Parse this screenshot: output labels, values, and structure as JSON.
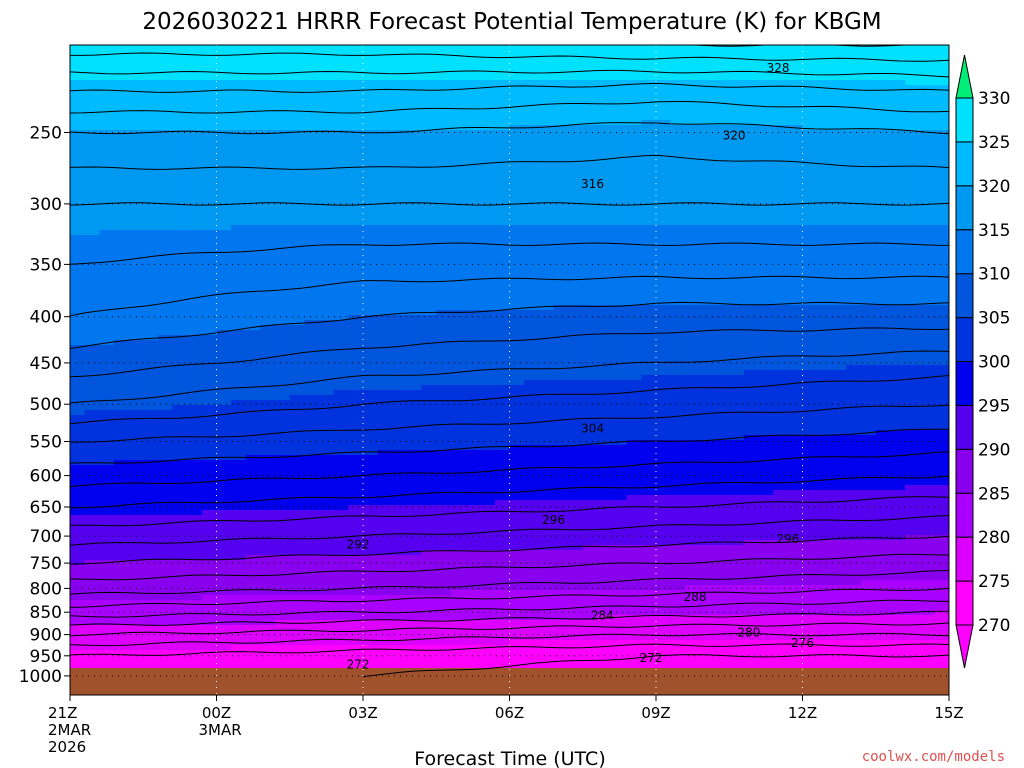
{
  "chart_data": {
    "type": "contour",
    "title": "2026030221 HRRR Forecast Potential Temperature (K) for KBGM",
    "xlabel": "Forecast Time (UTC)",
    "ylabel": "",
    "x_ticks": [
      {
        "hour": 0,
        "lines": [
          "21Z",
          "2MAR",
          "2026"
        ]
      },
      {
        "hour": 3,
        "lines": [
          "00Z",
          "3MAR"
        ]
      },
      {
        "hour": 6,
        "lines": [
          "03Z"
        ]
      },
      {
        "hour": 9,
        "lines": [
          "06Z"
        ]
      },
      {
        "hour": 12,
        "lines": [
          "09Z"
        ]
      },
      {
        "hour": 15,
        "lines": [
          "12Z"
        ]
      },
      {
        "hour": 18,
        "lines": [
          "15Z"
        ]
      }
    ],
    "xlim_hours": [
      0,
      18
    ],
    "y_ticks": [
      "250",
      "300",
      "350",
      "400",
      "450",
      "500",
      "550",
      "600",
      "650",
      "700",
      "750",
      "800",
      "850",
      "900",
      "950",
      "1000"
    ],
    "ylim_hpa": [
      1050,
      200
    ],
    "y_scale": "log",
    "grid": "dotted",
    "surface_hpa": 980,
    "colorbar": {
      "position": "right",
      "levels": [
        270,
        275,
        280,
        285,
        290,
        295,
        300,
        305,
        310,
        315,
        320,
        325,
        330
      ],
      "tick_labels": [
        "270",
        "275",
        "280",
        "285",
        "290",
        "295",
        "300",
        "305",
        "310",
        "315",
        "320",
        "325",
        "330"
      ],
      "colors": [
        "#ff00ff",
        "#dd00ff",
        "#aa00ff",
        "#8800ee",
        "#5500ee",
        "#0000ee",
        "#0033dd",
        "#0055dd",
        "#0077ee",
        "#0099f2",
        "#00bbff",
        "#00e0ff",
        "#00ff88"
      ],
      "below_color": "#ff00ff",
      "above_color": "#00ee77"
    },
    "ground_color": "#a0522d",
    "contour_labels": [
      {
        "text": "328",
        "hour": 14.5,
        "hpa": 212
      },
      {
        "text": "320",
        "hour": 13.6,
        "hpa": 252
      },
      {
        "text": "316",
        "hour": 10.7,
        "hpa": 285
      },
      {
        "text": "304",
        "hour": 10.7,
        "hpa": 532
      },
      {
        "text": "296",
        "hour": 9.9,
        "hpa": 672
      },
      {
        "text": "296",
        "hour": 14.7,
        "hpa": 705
      },
      {
        "text": "292",
        "hour": 5.9,
        "hpa": 715
      },
      {
        "text": "288",
        "hour": 12.8,
        "hpa": 818
      },
      {
        "text": "284",
        "hour": 10.9,
        "hpa": 857
      },
      {
        "text": "280",
        "hour": 13.9,
        "hpa": 895
      },
      {
        "text": "276",
        "hour": 15.0,
        "hpa": 920
      },
      {
        "text": "272",
        "hour": 11.9,
        "hpa": 955
      },
      {
        "text": "272",
        "hour": 5.9,
        "hpa": 972
      }
    ],
    "theta_profiles": [
      {
        "hour": 0,
        "points": [
          [
            1000,
            273
          ],
          [
            950,
            274
          ],
          [
            900,
            278
          ],
          [
            850,
            283
          ],
          [
            800,
            287
          ],
          [
            750,
            290
          ],
          [
            700,
            293
          ],
          [
            650,
            296
          ],
          [
            600,
            299
          ],
          [
            550,
            302
          ],
          [
            500,
            306
          ],
          [
            450,
            309
          ],
          [
            400,
            312
          ],
          [
            350,
            314
          ],
          [
            300,
            316
          ],
          [
            250,
            320
          ],
          [
            225,
            324
          ],
          [
            200,
            329
          ]
        ]
      },
      {
        "hour": 6,
        "points": [
          [
            1000,
            272
          ],
          [
            950,
            273
          ],
          [
            900,
            277
          ],
          [
            850,
            282
          ],
          [
            800,
            286
          ],
          [
            750,
            289
          ],
          [
            700,
            292
          ],
          [
            650,
            295
          ],
          [
            600,
            298
          ],
          [
            550,
            301
          ],
          [
            500,
            304
          ],
          [
            450,
            307
          ],
          [
            400,
            310
          ],
          [
            350,
            313
          ],
          [
            300,
            316
          ],
          [
            250,
            320
          ],
          [
            225,
            324
          ],
          [
            200,
            329
          ]
        ]
      },
      {
        "hour": 12,
        "points": [
          [
            1000,
            271
          ],
          [
            950,
            272
          ],
          [
            900,
            276
          ],
          [
            850,
            281
          ],
          [
            800,
            285
          ],
          [
            750,
            288
          ],
          [
            700,
            291
          ],
          [
            650,
            294
          ],
          [
            600,
            297
          ],
          [
            550,
            300
          ],
          [
            500,
            303
          ],
          [
            450,
            306
          ],
          [
            400,
            309
          ],
          [
            350,
            313
          ],
          [
            300,
            316
          ],
          [
            250,
            319
          ],
          [
            225,
            323
          ],
          [
            200,
            330
          ]
        ]
      },
      {
        "hour": 18,
        "points": [
          [
            1000,
            271
          ],
          [
            950,
            272
          ],
          [
            900,
            276
          ],
          [
            850,
            280
          ],
          [
            800,
            284
          ],
          [
            750,
            287
          ],
          [
            700,
            290
          ],
          [
            650,
            293
          ],
          [
            600,
            296
          ],
          [
            550,
            299
          ],
          [
            500,
            302
          ],
          [
            450,
            305
          ],
          [
            400,
            309
          ],
          [
            350,
            313
          ],
          [
            300,
            316
          ],
          [
            250,
            320
          ],
          [
            225,
            324
          ],
          [
            200,
            330
          ]
        ]
      }
    ]
  },
  "credit": "coolwx.com/models"
}
